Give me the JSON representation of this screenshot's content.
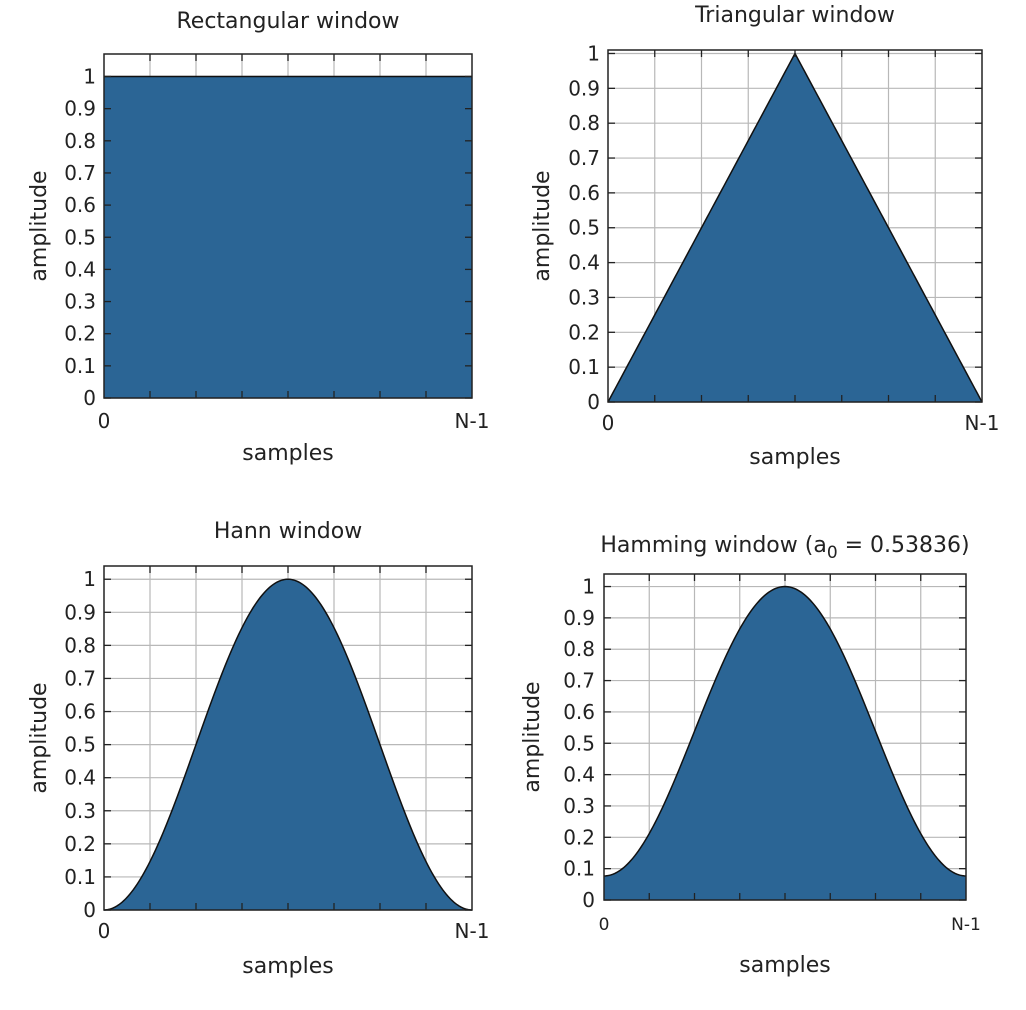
{
  "colors": {
    "fill": "#2b6595",
    "outline": "#111111",
    "grid": "#b8b8b8",
    "frame": "#222222"
  },
  "chart_data": [
    {
      "type": "area",
      "window": "rectangular",
      "title": "Rectangular window",
      "xlabel": "samples",
      "ylabel": "amplitude",
      "xticks": [
        "0",
        "N-1"
      ],
      "yticks": [
        "0",
        "0.1",
        "0.2",
        "0.3",
        "0.4",
        "0.5",
        "0.6",
        "0.7",
        "0.8",
        "0.9",
        "1"
      ],
      "xlim": [
        0,
        1
      ],
      "ylim": [
        0,
        1.07
      ],
      "grid": true,
      "x": [
        0,
        0.125,
        0.25,
        0.375,
        0.5,
        0.625,
        0.75,
        0.875,
        1
      ],
      "y": [
        1,
        1,
        1,
        1,
        1,
        1,
        1,
        1,
        1
      ]
    },
    {
      "type": "area",
      "window": "triangular",
      "title": "Triangular window",
      "xlabel": "samples",
      "ylabel": "amplitude",
      "xticks": [
        "0",
        "N-1"
      ],
      "yticks": [
        "0",
        "0.1",
        "0.2",
        "0.3",
        "0.4",
        "0.5",
        "0.6",
        "0.7",
        "0.8",
        "0.9",
        "1"
      ],
      "xlim": [
        0,
        1
      ],
      "ylim": [
        0,
        1.01
      ],
      "grid": true,
      "x": [
        0,
        0.125,
        0.25,
        0.375,
        0.5,
        0.625,
        0.75,
        0.875,
        1
      ],
      "y": [
        0,
        0.25,
        0.5,
        0.75,
        1,
        0.75,
        0.5,
        0.25,
        0
      ]
    },
    {
      "type": "area",
      "window": "hann",
      "title": "Hann window",
      "xlabel": "samples",
      "ylabel": "amplitude",
      "xticks": [
        "0",
        "N-1"
      ],
      "yticks": [
        "0",
        "0.1",
        "0.2",
        "0.3",
        "0.4",
        "0.5",
        "0.6",
        "0.7",
        "0.8",
        "0.9",
        "1"
      ],
      "xlim": [
        0,
        1
      ],
      "ylim": [
        0,
        1.04
      ],
      "grid": true,
      "x": [
        0,
        0.125,
        0.25,
        0.375,
        0.5,
        0.625,
        0.75,
        0.875,
        1
      ],
      "y": [
        0,
        0.146,
        0.5,
        0.854,
        1,
        0.854,
        0.5,
        0.146,
        0
      ]
    },
    {
      "type": "area",
      "window": "hamming",
      "title": "Hamming window (a",
      "title_subscript": "0",
      "title_suffix": " = 0.53836)",
      "xlabel": "samples",
      "ylabel": "amplitude",
      "xticks": [
        "0",
        "N-1"
      ],
      "yticks": [
        "0",
        "0.1",
        "0.2",
        "0.3",
        "0.4",
        "0.5",
        "0.6",
        "0.7",
        "0.8",
        "0.9",
        "1"
      ],
      "xlim": [
        0,
        1
      ],
      "ylim": [
        0,
        1.04
      ],
      "grid": true,
      "x": [
        0,
        0.125,
        0.25,
        0.375,
        0.5,
        0.625,
        0.75,
        0.875,
        1
      ],
      "y": [
        0.077,
        0.212,
        0.538,
        0.865,
        1,
        0.865,
        0.538,
        0.212,
        0.077
      ]
    }
  ]
}
